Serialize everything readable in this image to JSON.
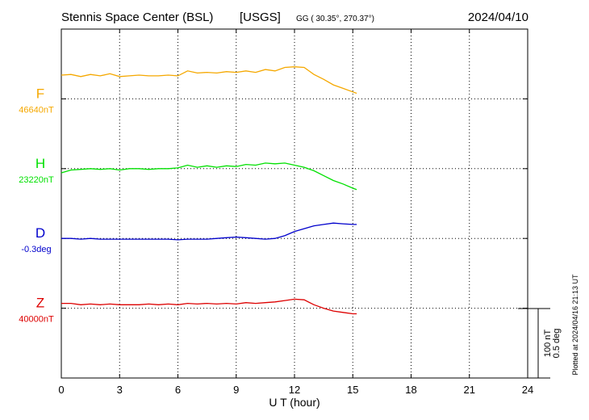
{
  "header": {
    "station": "Stennis Space Center (BSL)",
    "org": "[USGS]",
    "coords": "GG ( 30.35°, 270.37°)",
    "date": "2024/04/10"
  },
  "footer": {
    "plotted": "Plotted at 2024/04/16 21:13 UT"
  },
  "scale_bar": {
    "label_nt": "100 nT",
    "label_deg": "0.5 deg"
  },
  "colors": {
    "F": "#f5a800",
    "H": "#00e000",
    "D": "#0000cc",
    "Z": "#dd0000"
  },
  "chart_data": {
    "type": "line",
    "xlabel": "U T (hour)",
    "xlim": [
      0,
      24
    ],
    "xticks": [
      "0",
      "3",
      "6",
      "9",
      "12",
      "15",
      "18",
      "21",
      "24"
    ],
    "grid": true,
    "scale_nT_per_division": 100,
    "series": [
      {
        "name": "F",
        "baseline_label": "46640nT",
        "x": [
          0,
          0.5,
          1,
          1.5,
          2,
          2.5,
          3,
          3.5,
          4,
          4.5,
          5,
          5.5,
          6,
          6.5,
          7,
          7.5,
          8,
          8.5,
          9,
          9.5,
          10,
          10.5,
          11,
          11.5,
          12,
          12.5,
          13,
          13.5,
          14,
          14.5,
          15,
          15.2
        ],
        "values": [
          34,
          35,
          32,
          35,
          33,
          36,
          32,
          33,
          34,
          33,
          33,
          34,
          33,
          40,
          37,
          38,
          37,
          39,
          38,
          40,
          38,
          42,
          40,
          45,
          46,
          45,
          35,
          28,
          20,
          15,
          10,
          8
        ]
      },
      {
        "name": "H",
        "baseline_label": "23220nT",
        "x": [
          0,
          0.5,
          1,
          1.5,
          2,
          2.5,
          3,
          3.5,
          4,
          4.5,
          5,
          5.5,
          6,
          6.5,
          7,
          7.5,
          8,
          8.5,
          9,
          9.5,
          10,
          10.5,
          11,
          11.5,
          12,
          12.5,
          13,
          13.5,
          14,
          14.5,
          15,
          15.2
        ],
        "values": [
          -6,
          -2,
          -1,
          0,
          -1,
          0,
          -2,
          0,
          0,
          -1,
          0,
          0,
          1,
          5,
          2,
          4,
          2,
          4,
          3,
          6,
          5,
          8,
          7,
          8,
          5,
          2,
          -3,
          -10,
          -17,
          -22,
          -28,
          -30
        ]
      },
      {
        "name": "D",
        "baseline_label": "-0.3deg",
        "x": [
          0,
          0.5,
          1,
          1.5,
          2,
          2.5,
          3,
          3.5,
          4,
          4.5,
          5,
          5.5,
          6,
          6.5,
          7,
          7.5,
          8,
          8.5,
          9,
          9.5,
          10,
          10.5,
          11,
          11.5,
          12,
          12.5,
          13,
          13.5,
          14,
          14.5,
          15,
          15.2
        ],
        "values": [
          0,
          0,
          -1,
          0,
          -1,
          -1,
          -1,
          -1,
          -1,
          -1,
          -1,
          -1,
          -2,
          -1,
          -1,
          -1,
          0,
          1,
          2,
          1,
          0,
          -1,
          0,
          4,
          10,
          14,
          18,
          20,
          22,
          21,
          20,
          20
        ]
      },
      {
        "name": "Z",
        "baseline_label": "40000nT",
        "x": [
          0,
          0.5,
          1,
          1.5,
          2,
          2.5,
          3,
          3.5,
          4,
          4.5,
          5,
          5.5,
          6,
          6.5,
          7,
          7.5,
          8,
          8.5,
          9,
          9.5,
          10,
          10.5,
          11,
          11.5,
          12,
          12.5,
          13,
          13.5,
          14,
          14.5,
          15,
          15.2
        ],
        "values": [
          7,
          7,
          5,
          6,
          5,
          6,
          5,
          5,
          5,
          6,
          5,
          6,
          5,
          7,
          6,
          7,
          6,
          7,
          6,
          8,
          7,
          8,
          9,
          11,
          13,
          12,
          5,
          0,
          -4,
          -6,
          -8,
          -8
        ]
      }
    ]
  }
}
